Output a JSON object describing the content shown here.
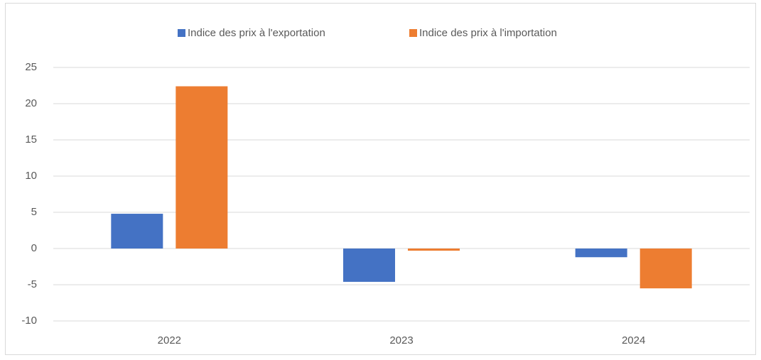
{
  "chart_data": {
    "type": "bar",
    "categories": [
      "2022",
      "2023",
      "2024"
    ],
    "series": [
      {
        "name": "Indice des prix à l'exportation",
        "color": "#4472c4",
        "values": [
          4.8,
          -4.6,
          -1.2
        ]
      },
      {
        "name": "Indice des prix à l'importation",
        "color": "#ed7d31",
        "values": [
          22.4,
          -0.3,
          -5.5
        ]
      }
    ],
    "ylim": [
      -10,
      25
    ],
    "yticks": [
      -10,
      -5,
      0,
      5,
      10,
      15,
      20,
      25
    ],
    "grid": true,
    "legend": "top"
  }
}
